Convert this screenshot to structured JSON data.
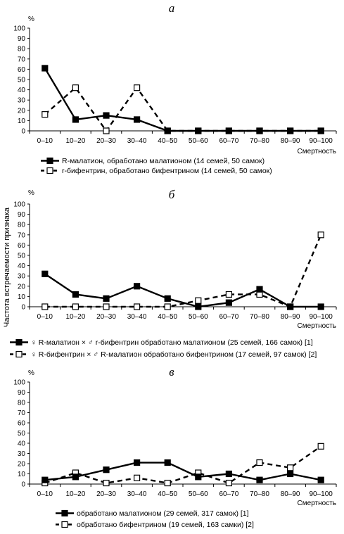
{
  "figure": {
    "ylabel": "Частота встречаемости признака"
  },
  "chart_data": [
    {
      "type": "line",
      "letter": "а",
      "y_unit": "%",
      "xlabel": "Смертность",
      "categories": [
        "0–10",
        "10–20",
        "20–30",
        "30–40",
        "40–50",
        "50–60",
        "60–70",
        "70–80",
        "80–90",
        "90–100"
      ],
      "ylim": [
        0,
        100
      ],
      "yticks": [
        0,
        10,
        20,
        30,
        40,
        50,
        60,
        70,
        80,
        90,
        100
      ],
      "series": [
        {
          "name": "R-малатион, обработано малатионом (14 семей, 50 самок)",
          "marker": "filled-square",
          "line": "solid",
          "color": "#000000",
          "values": [
            61,
            11,
            15,
            11,
            0,
            0,
            0,
            0,
            0,
            0
          ]
        },
        {
          "name": "r-бифентрин, обработано бифентрином (14 семей, 50 самок)",
          "marker": "open-square",
          "line": "dashed",
          "color": "#000000",
          "values": [
            16,
            42,
            0,
            42,
            0,
            0,
            0,
            0,
            0,
            0
          ]
        }
      ]
    },
    {
      "type": "line",
      "letter": "б",
      "y_unit": "%",
      "xlabel": "Смертность",
      "categories": [
        "0–10",
        "10–20",
        "20–30",
        "30–40",
        "40–50",
        "50–60",
        "60–70",
        "70–80",
        "80–90",
        "90–100"
      ],
      "ylim": [
        0,
        100
      ],
      "yticks": [
        0,
        10,
        20,
        30,
        40,
        50,
        60,
        70,
        80,
        90,
        100
      ],
      "series": [
        {
          "name": "♀ R-малатион × ♂ r-бифентрин обработано малатионом (25 семей, 166 самок) [1]",
          "marker": "filled-square",
          "line": "solid",
          "color": "#000000",
          "values": [
            32,
            12,
            8,
            20,
            8,
            0,
            4,
            17,
            0,
            0
          ]
        },
        {
          "name": "♀ R-бифентрин × ♂ R-малатион обработано бифентрином (17 семей, 97 самок) [2]",
          "marker": "open-square",
          "line": "dashed",
          "color": "#000000",
          "values": [
            0,
            0,
            0,
            0,
            0,
            6,
            12,
            12,
            0,
            70
          ]
        }
      ]
    },
    {
      "type": "line",
      "letter": "в",
      "y_unit": "%",
      "xlabel": "Смертность",
      "categories": [
        "0–10",
        "10–20",
        "20–30",
        "30–40",
        "40–50",
        "50–60",
        "60–70",
        "70–80",
        "80–90",
        "90–100"
      ],
      "ylim": [
        0,
        100
      ],
      "yticks": [
        0,
        10,
        20,
        30,
        40,
        50,
        60,
        70,
        80,
        90,
        100
      ],
      "series": [
        {
          "name": "обработано малатионом (29 семей, 317 самок) [1]",
          "marker": "filled-square",
          "line": "solid",
          "color": "#000000",
          "values": [
            4,
            7,
            14,
            21,
            21,
            7,
            10,
            4,
            10,
            4
          ]
        },
        {
          "name": "обработано бифентрином (19 семей, 163 самки) [2]",
          "marker": "open-square",
          "line": "dashed",
          "color": "#000000",
          "values": [
            1,
            11,
            1,
            6,
            1,
            11,
            1,
            21,
            16,
            37
          ]
        }
      ]
    }
  ]
}
